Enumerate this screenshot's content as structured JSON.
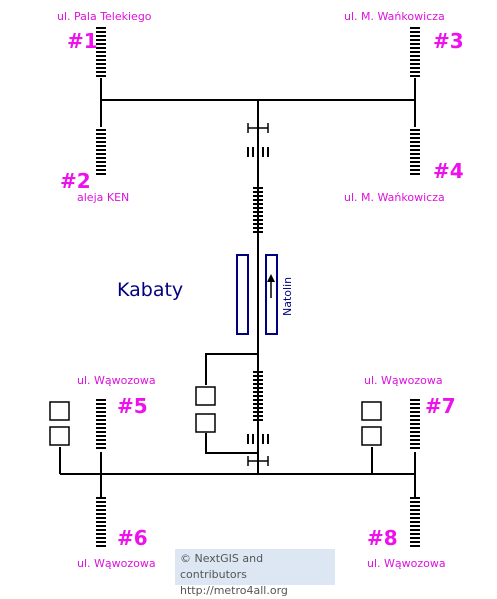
{
  "station": {
    "name": "Kabaty",
    "direction": "Natolin"
  },
  "exits": [
    {
      "number": "#1",
      "street": "ul. Pala Telekiego"
    },
    {
      "number": "#2",
      "street": "aleja KEN"
    },
    {
      "number": "#3",
      "street": "ul. M. Wańkowicza"
    },
    {
      "number": "#4",
      "street": "ul. M. Wańkowicza"
    },
    {
      "number": "#5",
      "street": "ul. Wąwozowa"
    },
    {
      "number": "#6",
      "street": "ul. Wąwozowa"
    },
    {
      "number": "#7",
      "street": "ul. Wąwozowa"
    },
    {
      "number": "#8",
      "street": "ul. Wąwozowa"
    }
  ],
  "attribution": {
    "line1": "© NextGIS and contributors",
    "line2": "http://metro4all.org"
  },
  "colors": {
    "exit_number": "#ee11ee",
    "street_label": "#dd11dd",
    "station_label": "#000080",
    "lines": "#000000",
    "platform": "#000080"
  }
}
